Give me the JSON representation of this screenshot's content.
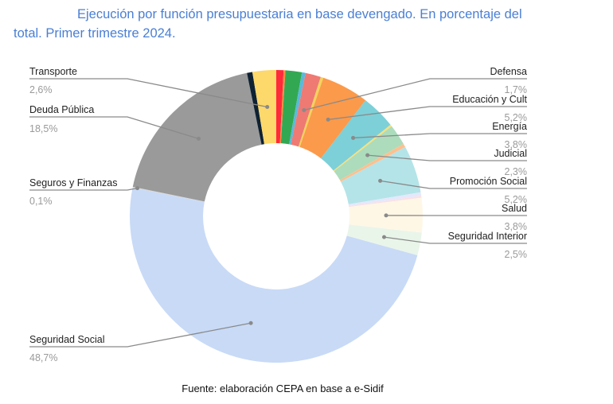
{
  "title": {
    "line1": "Ejecución por función presupuestaria en base devengado. En porcentaje del",
    "line2": "total. Primer trimestre 2024."
  },
  "source": "Fuente: elaboración CEPA en base a e-Sidif",
  "chart_data": {
    "type": "pie",
    "variant": "donut",
    "title": "Ejecución por función presupuestaria en base devengado. En porcentaje del total. Primer trimestre 2024.",
    "unit": "%",
    "start_angle": "12 o'clock",
    "direction": "clockwise",
    "slices": [
      {
        "name": "",
        "value": 0.8,
        "color": "#ff2a3a",
        "labeled": false
      },
      {
        "name": "",
        "value": 0.2,
        "color": "#ff8a3a",
        "labeled": false
      },
      {
        "name": "",
        "value": 1.8,
        "color": "#33a853",
        "labeled": false
      },
      {
        "name": "",
        "value": 0.4,
        "color": "#5ab9d9",
        "labeled": false
      },
      {
        "name": "Defensa",
        "value": 1.7,
        "display": "1,7%",
        "color": "#ee7a73",
        "labeled": true,
        "side": "right"
      },
      {
        "name": "",
        "value": 0.3,
        "color": "#f2d35a",
        "labeled": false
      },
      {
        "name": "Educación y Cult",
        "value": 5.2,
        "display": "5,2%",
        "color": "#fb9a4b",
        "labeled": true,
        "side": "right"
      },
      {
        "name": "Energía",
        "value": 3.8,
        "display": "3,8%",
        "color": "#7dd0d8",
        "labeled": true,
        "side": "right"
      },
      {
        "name": "",
        "value": 0.2,
        "color": "#f8e07a",
        "labeled": false
      },
      {
        "name": "Judicial",
        "value": 2.3,
        "display": "2,3%",
        "color": "#acdcbc",
        "labeled": true,
        "side": "right"
      },
      {
        "name": "",
        "value": 0.4,
        "color": "#ffc08f",
        "labeled": false
      },
      {
        "name": "Promoción Social",
        "value": 5.2,
        "display": "5,2%",
        "color": "#b4e4e8",
        "labeled": true,
        "side": "right"
      },
      {
        "name": "",
        "value": 0.4,
        "color": "#e4e8fb",
        "labeled": false
      },
      {
        "name": "",
        "value": 0.2,
        "color": "#fbe0e4",
        "labeled": false
      },
      {
        "name": "Salud",
        "value": 3.8,
        "display": "3,8%",
        "color": "#fff7e6",
        "labeled": true,
        "side": "right"
      },
      {
        "name": "Seguridad Interior",
        "value": 2.5,
        "display": "2,5%",
        "color": "#eaf5ea",
        "labeled": true,
        "side": "right"
      },
      {
        "name": "Seguridad Social",
        "value": 48.7,
        "display": "48,7%",
        "color": "#c8daf6",
        "labeled": true,
        "side": "left"
      },
      {
        "name": "Seguros y Finanzas",
        "value": 0.1,
        "display": "0,1%",
        "color": "#d7d7d7",
        "labeled": true,
        "side": "left"
      },
      {
        "name": "Deuda Pública",
        "value": 18.5,
        "display": "18,5%",
        "color": "#9a9a9a",
        "labeled": true,
        "side": "left"
      },
      {
        "name": "",
        "value": 0.6,
        "color": "#0f2233",
        "labeled": false
      },
      {
        "name": "Transporte",
        "value": 2.6,
        "display": "2,6%",
        "color": "#fdd86a",
        "labeled": true,
        "side": "left"
      }
    ]
  }
}
